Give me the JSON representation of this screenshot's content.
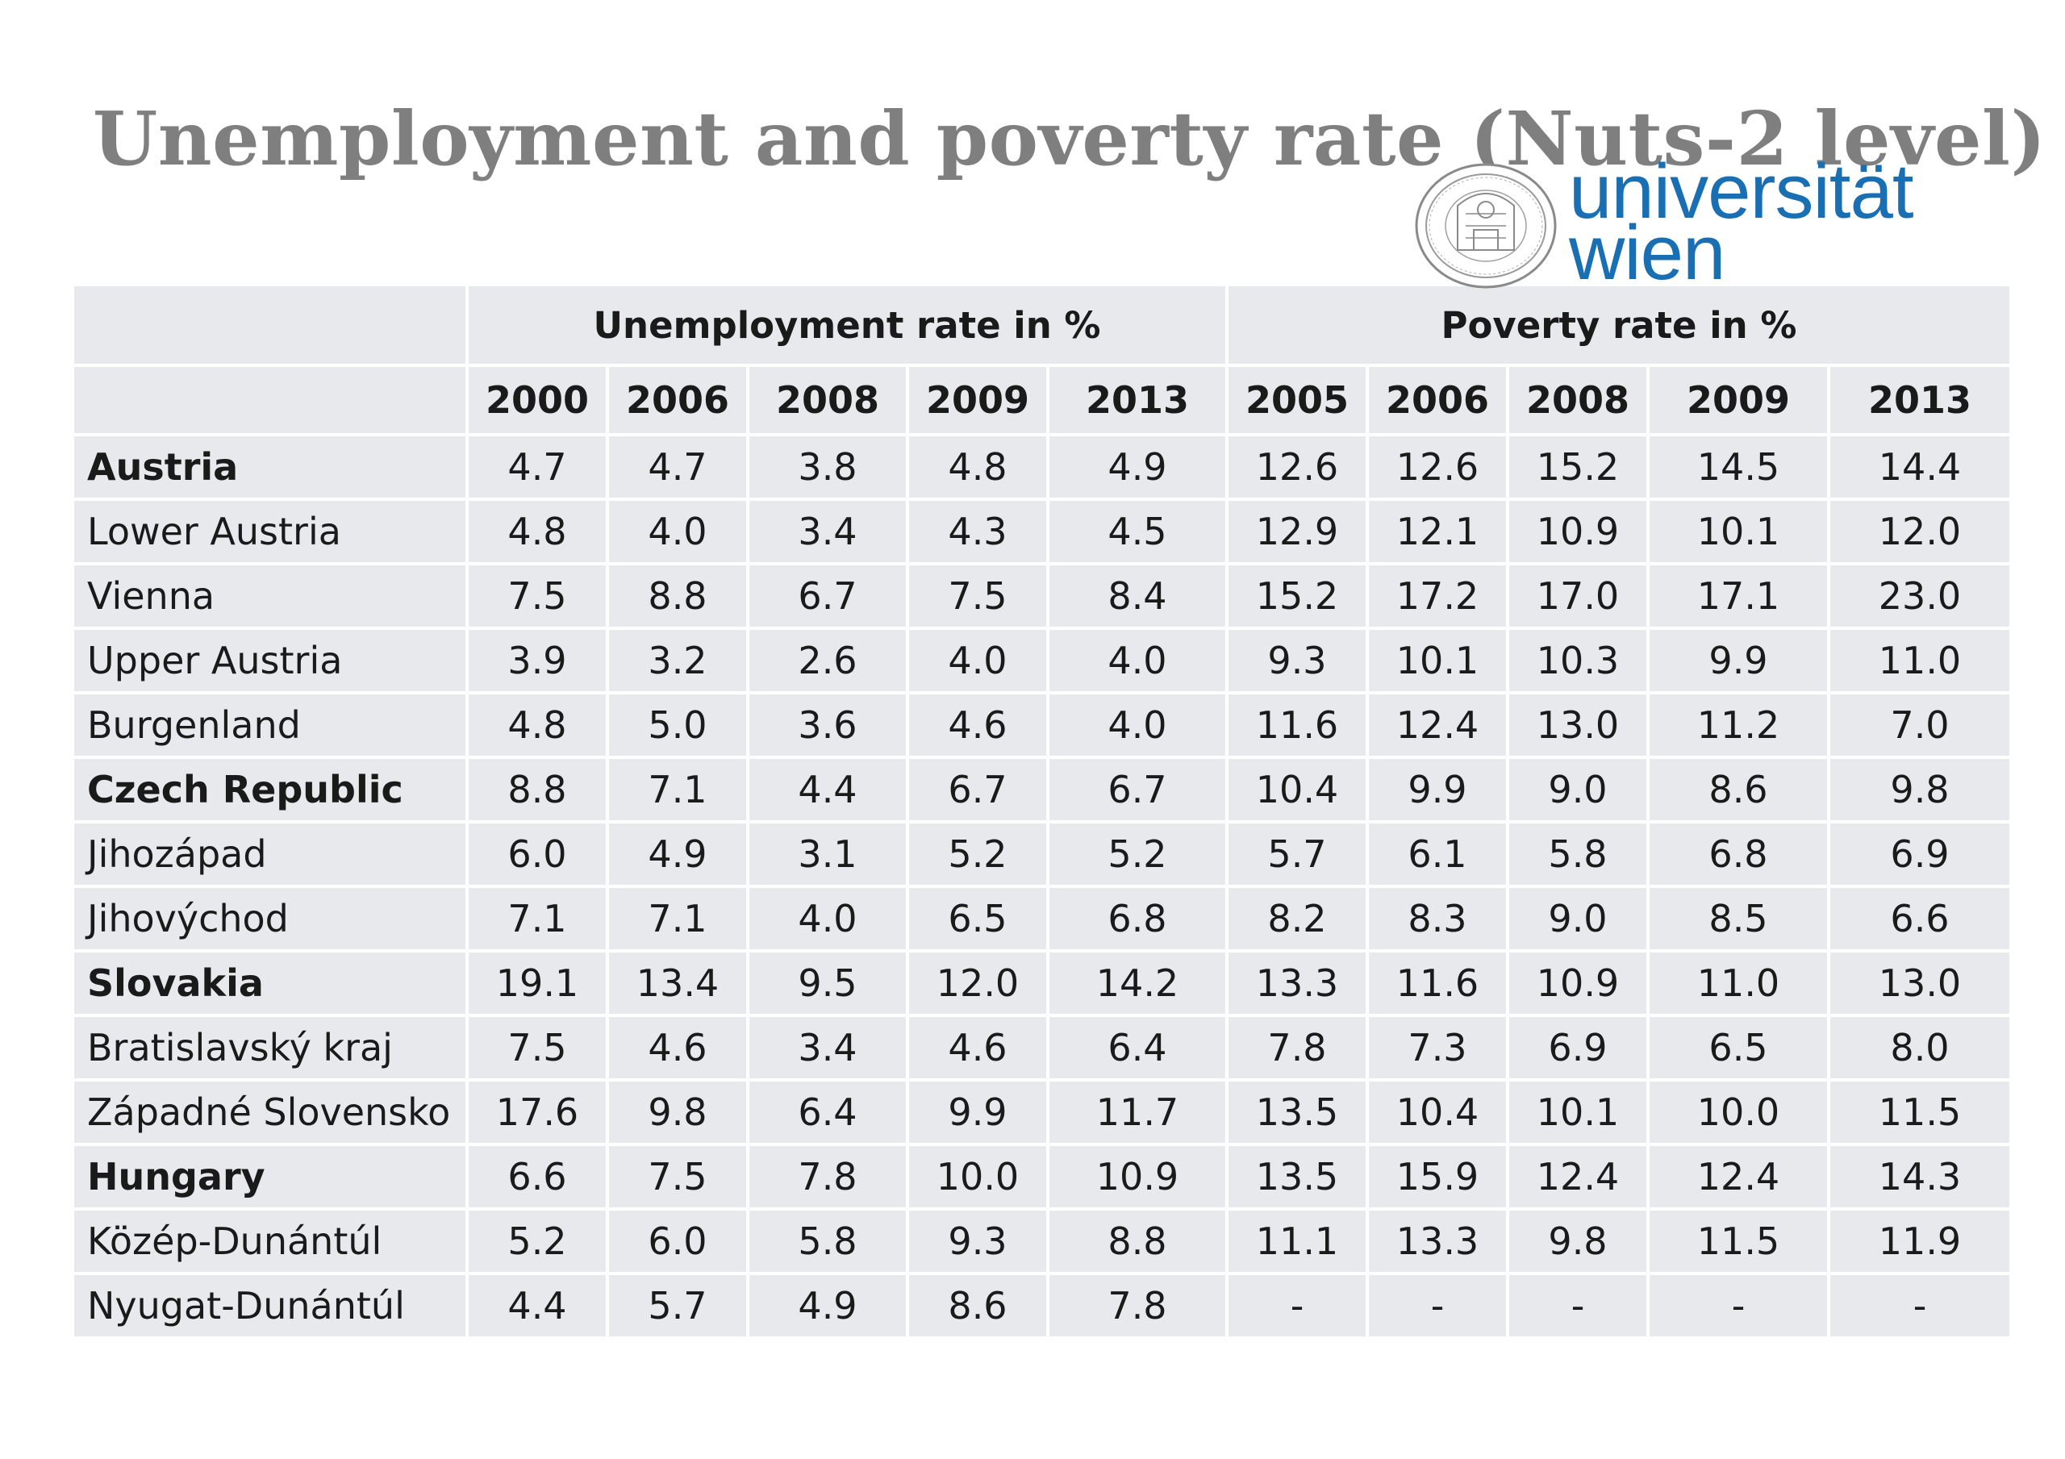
{
  "title": "Unemployment and poverty rate (Nuts-2 level)",
  "logo": {
    "word_line1": "universität",
    "word_line2": "wien",
    "color": "#1a6fb3"
  },
  "table": {
    "group_headers": {
      "unemployment": "Unemployment rate in %",
      "poverty": "Poverty rate in %"
    },
    "unemployment_years": [
      "2000",
      "2006",
      "2008",
      "2009",
      "2013"
    ],
    "poverty_years": [
      "2005",
      "2006",
      "2008",
      "2009",
      "2013"
    ],
    "rows": [
      {
        "name": "Austria",
        "bold": true,
        "unemployment": [
          "4.7",
          "4.7",
          "3.8",
          "4.8",
          "4.9"
        ],
        "poverty": [
          "12.6",
          "12.6",
          "15.2",
          "14.5",
          "14.4"
        ]
      },
      {
        "name": "Lower Austria",
        "bold": false,
        "unemployment": [
          "4.8",
          "4.0",
          "3.4",
          "4.3",
          "4.5"
        ],
        "poverty": [
          "12.9",
          "12.1",
          "10.9",
          "10.1",
          "12.0"
        ]
      },
      {
        "name": "Vienna",
        "bold": false,
        "unemployment": [
          "7.5",
          "8.8",
          "6.7",
          "7.5",
          "8.4"
        ],
        "poverty": [
          "15.2",
          "17.2",
          "17.0",
          "17.1",
          "23.0"
        ]
      },
      {
        "name": "Upper Austria",
        "bold": false,
        "unemployment": [
          "3.9",
          "3.2",
          "2.6",
          "4.0",
          "4.0"
        ],
        "poverty": [
          "9.3",
          "10.1",
          "10.3",
          "9.9",
          "11.0"
        ]
      },
      {
        "name": "Burgenland",
        "bold": false,
        "unemployment": [
          "4.8",
          "5.0",
          "3.6",
          "4.6",
          "4.0"
        ],
        "poverty": [
          "11.6",
          "12.4",
          "13.0",
          "11.2",
          "7.0"
        ]
      },
      {
        "name": "Czech Republic",
        "bold": true,
        "unemployment": [
          "8.8",
          "7.1",
          "4.4",
          "6.7",
          "6.7"
        ],
        "poverty": [
          "10.4",
          "9.9",
          "9.0",
          "8.6",
          "9.8"
        ]
      },
      {
        "name": "Jihozápad",
        "bold": false,
        "unemployment": [
          "6.0",
          "4.9",
          "3.1",
          "5.2",
          "5.2"
        ],
        "poverty": [
          "5.7",
          "6.1",
          "5.8",
          "6.8",
          "6.9"
        ]
      },
      {
        "name": "Jihovýchod",
        "bold": false,
        "unemployment": [
          "7.1",
          "7.1",
          "4.0",
          "6.5",
          "6.8"
        ],
        "poverty": [
          "8.2",
          "8.3",
          "9.0",
          "8.5",
          "6.6"
        ]
      },
      {
        "name": "Slovakia",
        "bold": true,
        "unemployment": [
          "19.1",
          "13.4",
          "9.5",
          "12.0",
          "14.2"
        ],
        "poverty": [
          "13.3",
          "11.6",
          "10.9",
          "11.0",
          "13.0"
        ]
      },
      {
        "name": "Bratislavský kraj",
        "bold": false,
        "unemployment": [
          "7.5",
          "4.6",
          "3.4",
          "4.6",
          "6.4"
        ],
        "poverty": [
          "7.8",
          "7.3",
          "6.9",
          "6.5",
          "8.0"
        ]
      },
      {
        "name": "Západné Slovensko",
        "bold": false,
        "unemployment": [
          "17.6",
          "9.8",
          "6.4",
          "9.9",
          "11.7"
        ],
        "poverty": [
          "13.5",
          "10.4",
          "10.1",
          "10.0",
          "11.5"
        ]
      },
      {
        "name": "Hungary",
        "bold": true,
        "unemployment": [
          "6.6",
          "7.5",
          "7.8",
          "10.0",
          "10.9"
        ],
        "poverty": [
          "13.5",
          "15.9",
          "12.4",
          "12.4",
          "14.3"
        ]
      },
      {
        "name": "Közép-Dunántúl",
        "bold": false,
        "unemployment": [
          "5.2",
          "6.0",
          "5.8",
          "9.3",
          "8.8"
        ],
        "poverty": [
          "11.1",
          "13.3",
          "9.8",
          "11.5",
          "11.9"
        ]
      },
      {
        "name": "Nyugat-Dunántúl",
        "bold": false,
        "unemployment": [
          "4.4",
          "5.7",
          "4.9",
          "8.6",
          "7.8"
        ],
        "poverty": [
          "-",
          "-",
          "-",
          "-",
          "-"
        ]
      }
    ]
  }
}
